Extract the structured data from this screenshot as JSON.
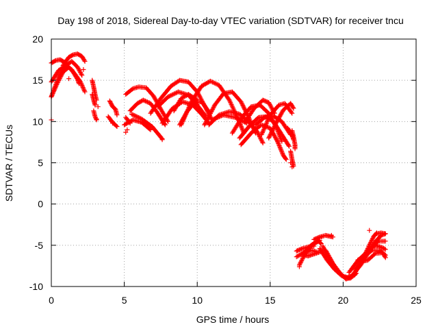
{
  "chart_data": {
    "type": "scatter",
    "title": "Day 198 of 2018, Sidereal Day-to-day VTEC variation (SDTVAR) for receiver tncu",
    "xlabel": "GPS time / hours",
    "ylabel": "SDTVAR / TECUs",
    "xlim": [
      0,
      25
    ],
    "ylim": [
      -10,
      20
    ],
    "xticks": [
      0,
      5,
      10,
      15,
      20,
      25
    ],
    "yticks": [
      -10,
      -5,
      0,
      5,
      10,
      15,
      20
    ],
    "grid": true,
    "marker": "+",
    "color": "#ff0000",
    "arc_segments": [
      {
        "points": [
          [
            0,
            13
          ],
          [
            0.4,
            14.6
          ],
          [
            0.8,
            16
          ],
          [
            1.2,
            16.6
          ],
          [
            1.6,
            15.8
          ],
          [
            2.0,
            14.8
          ],
          [
            2.3,
            13.6
          ]
        ]
      },
      {
        "points": [
          [
            0,
            13
          ],
          [
            0.5,
            15.4
          ],
          [
            1.0,
            16.8
          ],
          [
            1.4,
            17.3
          ],
          [
            1.8,
            16.6
          ],
          [
            2.1,
            15.6
          ]
        ]
      },
      {
        "points": [
          [
            0,
            17.1
          ],
          [
            0.3,
            17.4
          ],
          [
            0.6,
            17.5
          ],
          [
            0.9,
            17.2
          ],
          [
            1.1,
            16.6
          ]
        ]
      },
      {
        "points": [
          [
            0,
            14.8
          ],
          [
            0.5,
            16.2
          ],
          [
            1.0,
            16.8
          ],
          [
            1.4,
            16.3
          ],
          [
            1.8,
            15.1
          ],
          [
            1.9,
            14.6
          ]
        ]
      },
      {
        "points": [
          [
            0.8,
            16.8
          ],
          [
            1.2,
            17.8
          ],
          [
            1.5,
            18.1
          ],
          [
            1.8,
            18.2
          ],
          [
            2.1,
            17.9
          ],
          [
            2.3,
            17.3
          ]
        ]
      },
      {
        "points": [
          [
            2.8,
            15.0
          ],
          [
            2.9,
            14.2
          ],
          [
            3.0,
            13.3
          ],
          [
            3.1,
            12.6
          ]
        ]
      },
      {
        "points": [
          [
            2.8,
            13.3
          ],
          [
            2.9,
            12.6
          ],
          [
            3.0,
            12.0
          ]
        ]
      },
      {
        "points": [
          [
            2.9,
            11.3
          ],
          [
            3.0,
            10.6
          ],
          [
            3.1,
            10.2
          ]
        ]
      },
      {
        "points": [
          [
            4.0,
            12.5
          ],
          [
            4.2,
            11.8
          ],
          [
            4.4,
            11.5
          ],
          [
            4.5,
            10.8
          ]
        ]
      },
      {
        "points": [
          [
            3.9,
            10.6
          ],
          [
            4.2,
            9.9
          ],
          [
            4.5,
            9.4
          ]
        ]
      },
      {
        "points": [
          [
            5.1,
            10.5
          ],
          [
            5.4,
            9.8
          ]
        ]
      },
      {
        "points": [
          [
            5.1,
            13.3
          ],
          [
            5.6,
            14.0
          ],
          [
            6.0,
            14.2
          ],
          [
            6.5,
            14.1
          ],
          [
            7.0,
            13.1
          ],
          [
            7.5,
            11.5
          ],
          [
            8.0,
            10.0
          ]
        ]
      },
      {
        "points": [
          [
            5.4,
            11.3
          ],
          [
            5.9,
            12.2
          ],
          [
            6.3,
            12.6
          ],
          [
            6.8,
            12.2
          ],
          [
            7.3,
            11.0
          ],
          [
            7.8,
            9.6
          ]
        ]
      },
      {
        "points": [
          [
            5.5,
            10.9
          ],
          [
            6.2,
            10.3
          ],
          [
            6.9,
            9.4
          ],
          [
            7.6,
            7.9
          ]
        ]
      },
      {
        "points": [
          [
            5.0,
            9.6
          ],
          [
            5.6,
            10.2
          ],
          [
            6.2,
            9.9
          ],
          [
            6.8,
            9.0
          ]
        ]
      },
      {
        "points": [
          [
            6.8,
            11.0
          ],
          [
            7.5,
            12.8
          ],
          [
            8.2,
            14.3
          ],
          [
            8.8,
            15.0
          ],
          [
            9.4,
            14.8
          ],
          [
            10.0,
            13.6
          ],
          [
            10.6,
            11.6
          ],
          [
            11.0,
            10.2
          ]
        ]
      },
      {
        "points": [
          [
            7.3,
            11.8
          ],
          [
            8.0,
            13.0
          ],
          [
            8.7,
            13.6
          ],
          [
            9.4,
            13.2
          ],
          [
            10.0,
            12.0
          ],
          [
            10.6,
            10.6
          ]
        ]
      },
      {
        "points": [
          [
            7.6,
            9.8
          ],
          [
            8.3,
            11.6
          ],
          [
            9.0,
            12.4
          ],
          [
            9.7,
            12.0
          ],
          [
            10.3,
            10.9
          ],
          [
            10.8,
            9.8
          ]
        ]
      },
      {
        "points": [
          [
            8.4,
            11.3
          ],
          [
            8.9,
            12.8
          ],
          [
            9.4,
            13.3
          ],
          [
            10.0,
            12.6
          ]
        ]
      },
      {
        "points": [
          [
            8.8,
            9.6
          ],
          [
            9.3,
            11.2
          ],
          [
            9.8,
            12.3
          ],
          [
            10.3,
            12.4
          ],
          [
            10.8,
            11.2
          ]
        ]
      },
      {
        "points": [
          [
            8.9,
            9.6
          ],
          [
            9.6,
            12.4
          ],
          [
            10.3,
            14.3
          ],
          [
            10.9,
            14.9
          ],
          [
            11.5,
            14.4
          ],
          [
            12.2,
            12.6
          ],
          [
            12.8,
            10.3
          ],
          [
            13.2,
            8.6
          ]
        ]
      },
      {
        "points": [
          [
            10.5,
            9.6
          ],
          [
            11.2,
            12.0
          ],
          [
            11.8,
            13.4
          ],
          [
            12.4,
            13.6
          ],
          [
            13.0,
            12.4
          ],
          [
            13.5,
            10.6
          ],
          [
            14.0,
            8.6
          ]
        ]
      },
      {
        "points": [
          [
            10.8,
            9.6
          ],
          [
            11.5,
            10.8
          ],
          [
            12.2,
            11.2
          ],
          [
            12.9,
            10.9
          ],
          [
            13.5,
            10.0
          ],
          [
            14.1,
            8.8
          ],
          [
            14.5,
            7.4
          ]
        ]
      },
      {
        "points": [
          [
            11.0,
            10.2
          ],
          [
            11.8,
            10.8
          ],
          [
            12.6,
            10.5
          ],
          [
            13.4,
            9.8
          ]
        ]
      },
      {
        "points": [
          [
            12.4,
            8.6
          ],
          [
            13.1,
            10.6
          ],
          [
            13.7,
            11.8
          ],
          [
            14.3,
            12.0
          ],
          [
            14.9,
            11.0
          ],
          [
            15.4,
            9.4
          ],
          [
            15.8,
            7.6
          ]
        ]
      },
      {
        "points": [
          [
            12.9,
            8.0
          ],
          [
            13.6,
            9.5
          ],
          [
            14.2,
            10.5
          ],
          [
            14.8,
            10.6
          ],
          [
            15.3,
            9.8
          ],
          [
            15.8,
            8.4
          ],
          [
            16.3,
            7.0
          ]
        ]
      },
      {
        "points": [
          [
            13.0,
            7.2
          ],
          [
            13.8,
            8.8
          ],
          [
            14.4,
            9.6
          ],
          [
            15.0,
            9.2
          ],
          [
            15.5,
            7.6
          ],
          [
            15.9,
            5.9
          ],
          [
            16.1,
            5.4
          ]
        ]
      },
      {
        "points": [
          [
            13.3,
            10.0
          ],
          [
            13.9,
            11.6
          ],
          [
            14.5,
            12.6
          ],
          [
            14.9,
            12.3
          ],
          [
            15.3,
            11.0
          ]
        ]
      },
      {
        "points": [
          [
            14.0,
            9.6
          ],
          [
            14.6,
            10.5
          ],
          [
            15.2,
            10.7
          ],
          [
            15.8,
            10.0
          ],
          [
            16.4,
            8.4
          ]
        ]
      },
      {
        "points": [
          [
            14.4,
            8.4
          ],
          [
            15.0,
            10.8
          ],
          [
            15.6,
            12.0
          ],
          [
            16.0,
            12.2
          ],
          [
            16.5,
            11.0
          ]
        ]
      },
      {
        "points": [
          [
            14.9,
            8.0
          ],
          [
            15.4,
            9.8
          ],
          [
            15.9,
            11.4
          ],
          [
            16.4,
            12.2
          ],
          [
            16.6,
            11.6
          ]
        ]
      },
      {
        "points": [
          [
            16.2,
            9.2
          ],
          [
            16.5,
            8.4
          ],
          [
            16.6,
            7.8
          ]
        ]
      },
      {
        "points": [
          [
            16.4,
            6.4
          ],
          [
            16.5,
            5.4
          ],
          [
            16.6,
            4.6
          ]
        ]
      },
      {
        "points": [
          [
            16.5,
            8.9
          ],
          [
            16.6,
            8.2
          ],
          [
            16.7,
            7.2
          ],
          [
            16.7,
            6.7
          ]
        ]
      },
      {
        "points": [
          [
            16.8,
            -5.7
          ],
          [
            17.2,
            -5.4
          ],
          [
            17.6,
            -5.2
          ],
          [
            18.0,
            -5.1
          ]
        ]
      },
      {
        "points": [
          [
            16.8,
            -6.4
          ],
          [
            17.3,
            -5.9
          ],
          [
            17.8,
            -5.0
          ],
          [
            18.3,
            -4.5
          ],
          [
            18.5,
            -4.8
          ]
        ]
      },
      {
        "points": [
          [
            17.0,
            -7.4
          ],
          [
            17.4,
            -6.0
          ],
          [
            17.9,
            -4.9
          ],
          [
            18.4,
            -4.4
          ]
        ]
      },
      {
        "points": [
          [
            17.1,
            -6.1
          ],
          [
            17.6,
            -6.3
          ],
          [
            18.1,
            -6.0
          ],
          [
            18.6,
            -5.7
          ]
        ]
      },
      {
        "points": [
          [
            17.3,
            -6.0
          ],
          [
            17.8,
            -5.6
          ],
          [
            18.2,
            -5.8
          ]
        ]
      },
      {
        "points": [
          [
            18.0,
            -4.3
          ],
          [
            18.4,
            -4.0
          ],
          [
            18.8,
            -3.8
          ],
          [
            19.3,
            -4.0
          ]
        ]
      },
      {
        "points": [
          [
            18.4,
            -5.4
          ],
          [
            18.9,
            -6.8
          ],
          [
            19.4,
            -7.9
          ],
          [
            19.9,
            -8.7
          ],
          [
            20.3,
            -8.9
          ],
          [
            20.8,
            -8.6
          ]
        ]
      },
      {
        "points": [
          [
            18.6,
            -5.1
          ],
          [
            19.1,
            -6.8
          ],
          [
            19.6,
            -8.1
          ],
          [
            20.1,
            -8.9
          ],
          [
            20.5,
            -9.0
          ],
          [
            20.9,
            -8.4
          ]
        ]
      },
      {
        "points": [
          [
            18.8,
            -5.6
          ],
          [
            19.3,
            -7.2
          ],
          [
            19.8,
            -8.4
          ],
          [
            20.2,
            -9.1
          ],
          [
            20.6,
            -8.8
          ],
          [
            20.9,
            -8.1
          ]
        ]
      },
      {
        "points": [
          [
            20.4,
            -8.3
          ],
          [
            20.9,
            -7.1
          ],
          [
            21.4,
            -6.2
          ],
          [
            21.9,
            -5.4
          ],
          [
            22.4,
            -4.5
          ],
          [
            22.9,
            -4.5
          ]
        ]
      },
      {
        "points": [
          [
            20.6,
            -8.7
          ],
          [
            21.2,
            -7.4
          ],
          [
            21.7,
            -6.0
          ],
          [
            22.2,
            -4.6
          ],
          [
            22.6,
            -3.8
          ],
          [
            22.9,
            -3.6
          ]
        ]
      },
      {
        "points": [
          [
            20.8,
            -8.0
          ],
          [
            21.3,
            -6.8
          ],
          [
            21.8,
            -5.0
          ],
          [
            22.1,
            -3.9
          ],
          [
            22.3,
            -3.5
          ]
        ]
      },
      {
        "points": [
          [
            21.0,
            -6.8
          ],
          [
            21.5,
            -6.2
          ],
          [
            22.0,
            -5.6
          ],
          [
            22.5,
            -5.6
          ],
          [
            22.9,
            -6.2
          ]
        ]
      },
      {
        "points": [
          [
            21.2,
            -7.0
          ],
          [
            21.7,
            -6.8
          ],
          [
            22.2,
            -6.0
          ],
          [
            22.7,
            -5.9
          ],
          [
            22.9,
            -6.5
          ]
        ]
      },
      {
        "points": [
          [
            21.7,
            -5.7
          ],
          [
            22.2,
            -5.0
          ],
          [
            22.7,
            -5.3
          ],
          [
            22.9,
            -5.5
          ]
        ]
      },
      {
        "points": [
          [
            22.3,
            -3.6
          ],
          [
            22.6,
            -3.5
          ],
          [
            22.9,
            -3.6
          ]
        ]
      }
    ],
    "points": [
      [
        0.0,
        10.2
      ],
      [
        1.2,
        15.2
      ],
      [
        2.2,
        16.3
      ],
      [
        3.2,
        11.8
      ],
      [
        3.1,
        10.3
      ],
      [
        4.2,
        9.8
      ],
      [
        4.5,
        9.4
      ],
      [
        5.1,
        8.7
      ],
      [
        5.2,
        9.0
      ],
      [
        7.6,
        7.8
      ],
      [
        16.4,
        5.0
      ],
      [
        16.5,
        4.5
      ],
      [
        17.0,
        -7.6
      ],
      [
        18.5,
        -4.0
      ],
      [
        19.2,
        -3.8
      ],
      [
        20.4,
        -9.0
      ],
      [
        20.5,
        -8.8
      ],
      [
        21.8,
        -3.2
      ]
    ]
  }
}
